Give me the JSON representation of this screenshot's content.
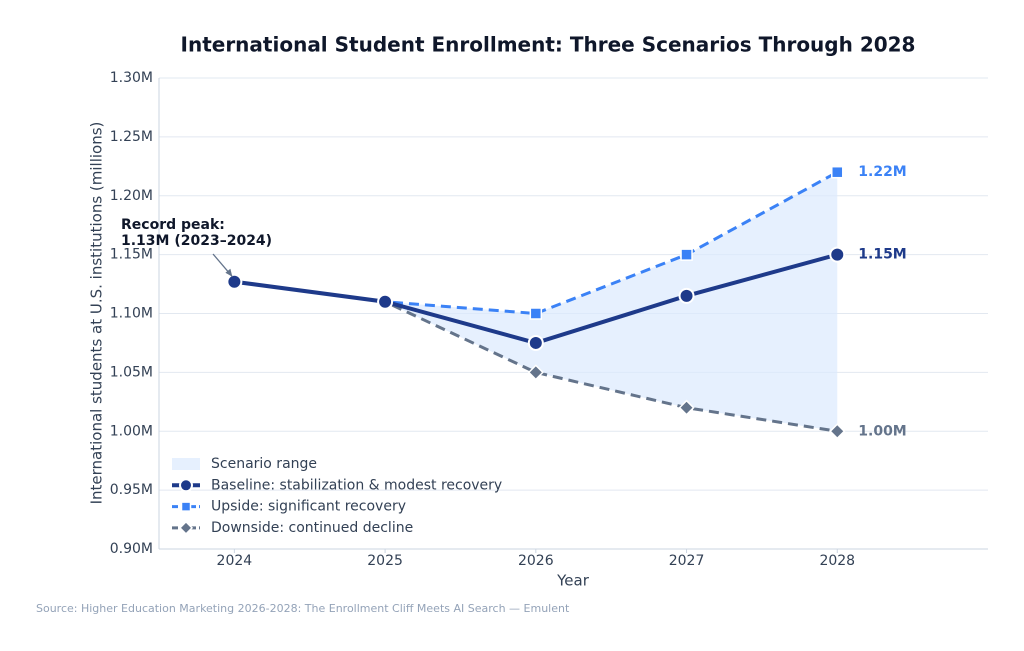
{
  "chart_data": {
    "type": "line",
    "title": "International Student Enrollment: Three Scenarios Through 2028",
    "x_label": "Year",
    "y_label": "International students at U.S. institutions (millions)",
    "source": "Source: Higher Education Marketing 2026-2028: The Enrollment Cliff Meets AI Search — Emulent",
    "annotation": [
      "Record peak:",
      "1.13M (2023–2024)"
    ],
    "x": [
      2024,
      2025,
      2026,
      2027,
      2028
    ],
    "xlim": [
      2023.5,
      2029
    ],
    "xticks": [
      2024,
      2025,
      2026,
      2027,
      2028
    ],
    "ylim": [
      0.9,
      1.3
    ],
    "yticks": [
      {
        "value": 0.9,
        "label": "0.90M"
      },
      {
        "value": 0.95,
        "label": "0.95M"
      },
      {
        "value": 1.0,
        "label": "1.00M"
      },
      {
        "value": 1.05,
        "label": "1.05M"
      },
      {
        "value": 1.1,
        "label": "1.10M"
      },
      {
        "value": 1.15,
        "label": "1.15M"
      },
      {
        "value": 1.2,
        "label": "1.20M"
      },
      {
        "value": 1.25,
        "label": "1.25M"
      },
      {
        "value": 1.3,
        "label": "1.30M"
      }
    ],
    "grid": true,
    "legend": "lower left",
    "range": {
      "name": "Scenario range",
      "color": "#dbeafe"
    },
    "series": [
      {
        "name": "Baseline: stabilization & modest recovery",
        "color": "#1e3a8a",
        "marker": "circle",
        "dash": "solid",
        "values": [
          1.127,
          1.11,
          1.075,
          1.115,
          1.15
        ],
        "value_labels": [
          null,
          null,
          null,
          null,
          "1.15M"
        ]
      },
      {
        "name": "Upside: significant recovery",
        "color": "#3b82f6",
        "marker": "square",
        "dash": "dashed",
        "values": [
          1.127,
          1.11,
          1.1,
          1.15,
          1.22
        ],
        "value_labels": [
          null,
          null,
          null,
          null,
          "1.22M"
        ]
      },
      {
        "name": "Downside: continued decline",
        "color": "#64748b",
        "marker": "diamond",
        "dash": "dashed",
        "values": [
          1.127,
          1.11,
          1.05,
          1.02,
          1.0
        ],
        "value_labels": [
          null,
          null,
          null,
          null,
          "1.00M"
        ]
      }
    ]
  }
}
